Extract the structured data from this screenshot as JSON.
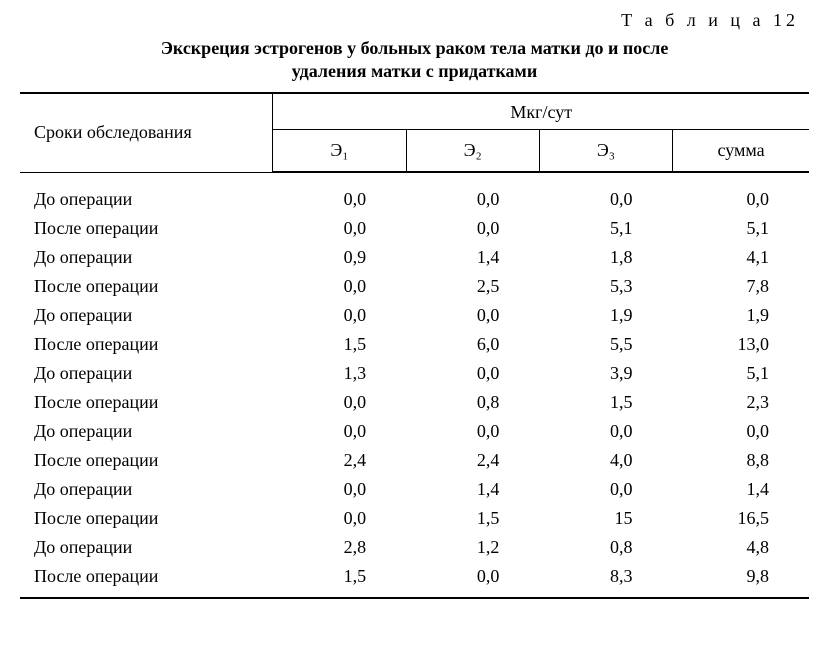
{
  "table_label": "Т а б л и ц а  12",
  "title_line1": "Экскреция эстрогенов у больных раком тела матки до и после",
  "title_line2": "удаления матки с придатками",
  "header_rowlabel": "Сроки обследования",
  "header_group": "Мкг/сут",
  "header_c1": "Э₁",
  "header_c2": "Э₂",
  "header_c3": "Э₃",
  "header_c4": "сумма",
  "rows": [
    {
      "label": "До операции",
      "c1": "0,0",
      "c2": "0,0",
      "c3": "0,0",
      "c4": "0,0"
    },
    {
      "label": "После операции",
      "c1": "0,0",
      "c2": "0,0",
      "c3": "5,1",
      "c4": "5,1"
    },
    {
      "label": "До операции",
      "c1": "0,9",
      "c2": "1,4",
      "c3": "1,8",
      "c4": "4,1"
    },
    {
      "label": "После операции",
      "c1": "0,0",
      "c2": "2,5",
      "c3": "5,3",
      "c4": "7,8"
    },
    {
      "label": "До операции",
      "c1": "0,0",
      "c2": "0,0",
      "c3": "1,9",
      "c4": "1,9"
    },
    {
      "label": "После операции",
      "c1": "1,5",
      "c2": "6,0",
      "c3": "5,5",
      "c4": "13,0"
    },
    {
      "label": "До операции",
      "c1": "1,3",
      "c2": "0,0",
      "c3": "3,9",
      "c4": "5,1"
    },
    {
      "label": "После операции",
      "c1": "0,0",
      "c2": "0,8",
      "c3": "1,5",
      "c4": "2,3"
    },
    {
      "label": "До операции",
      "c1": "0,0",
      "c2": "0,0",
      "c3": "0,0",
      "c4": "0,0"
    },
    {
      "label": "После операции",
      "c1": "2,4",
      "c2": "2,4",
      "c3": "4,0",
      "c4": "8,8"
    },
    {
      "label": "До операции",
      "c1": "0,0",
      "c2": "1,4",
      "c3": "0,0",
      "c4": "1,4"
    },
    {
      "label": "После операции",
      "c1": "0,0",
      "c2": "1,5",
      "c3": "15",
      "c4": "16,5"
    },
    {
      "label": "До операции",
      "c1": "2,8",
      "c2": "1,2",
      "c3": "0,8",
      "c4": "4,8"
    },
    {
      "label": "После операции",
      "c1": "1,5",
      "c2": "0,0",
      "c3": "8,3",
      "c4": "9,8"
    }
  ],
  "style": {
    "type": "table",
    "background_color": "#ffffff",
    "text_color": "#000000",
    "border_color": "#000000",
    "font_family": "Times New Roman",
    "title_fontsize": 18,
    "body_fontsize": 18,
    "columns": 5,
    "col_align": [
      "left",
      "right",
      "right",
      "right",
      "right"
    ]
  }
}
